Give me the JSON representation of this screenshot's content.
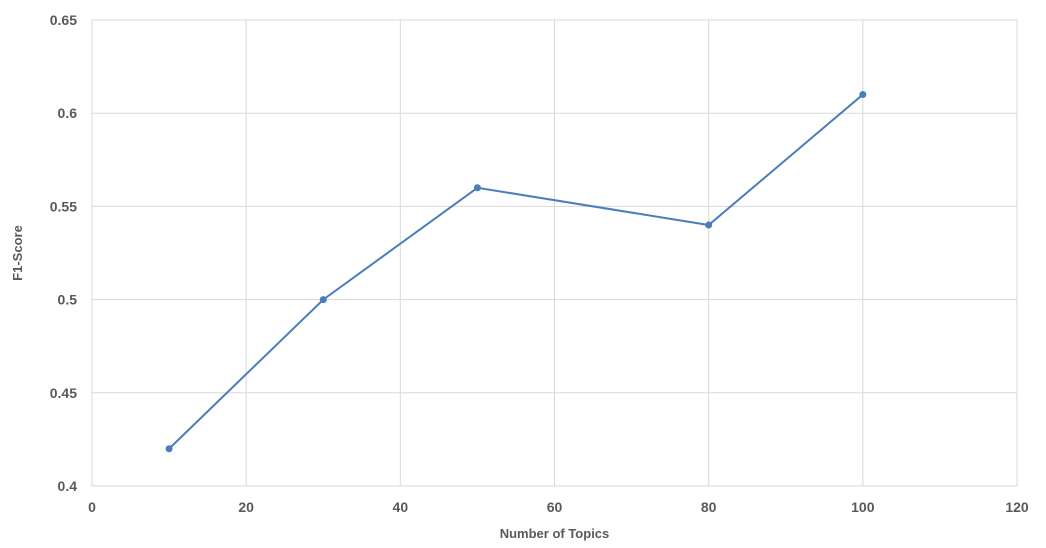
{
  "chart_data": {
    "type": "line",
    "title": "",
    "xlabel": "Number of Topics",
    "ylabel": "F1-Score",
    "xlim": [
      0,
      120
    ],
    "ylim": [
      0.4,
      0.65
    ],
    "x_ticks": [
      0,
      20,
      40,
      60,
      80,
      100,
      120
    ],
    "x_tick_labels": [
      "0",
      "20",
      "40",
      "60",
      "80",
      "100",
      "120"
    ],
    "y_ticks": [
      0.4,
      0.45,
      0.5,
      0.55,
      0.6,
      0.65
    ],
    "y_tick_labels": [
      "0.4",
      "0.45",
      "0.5",
      "0.55",
      "0.6",
      "0.65"
    ],
    "grid": true,
    "legend": "none",
    "series": [
      {
        "color": "#4a7ebb",
        "points": [
          {
            "x": 10,
            "y": 0.42
          },
          {
            "x": 30,
            "y": 0.5
          },
          {
            "x": 50,
            "y": 0.56
          },
          {
            "x": 80,
            "y": 0.54
          },
          {
            "x": 100,
            "y": 0.61
          }
        ]
      }
    ]
  }
}
